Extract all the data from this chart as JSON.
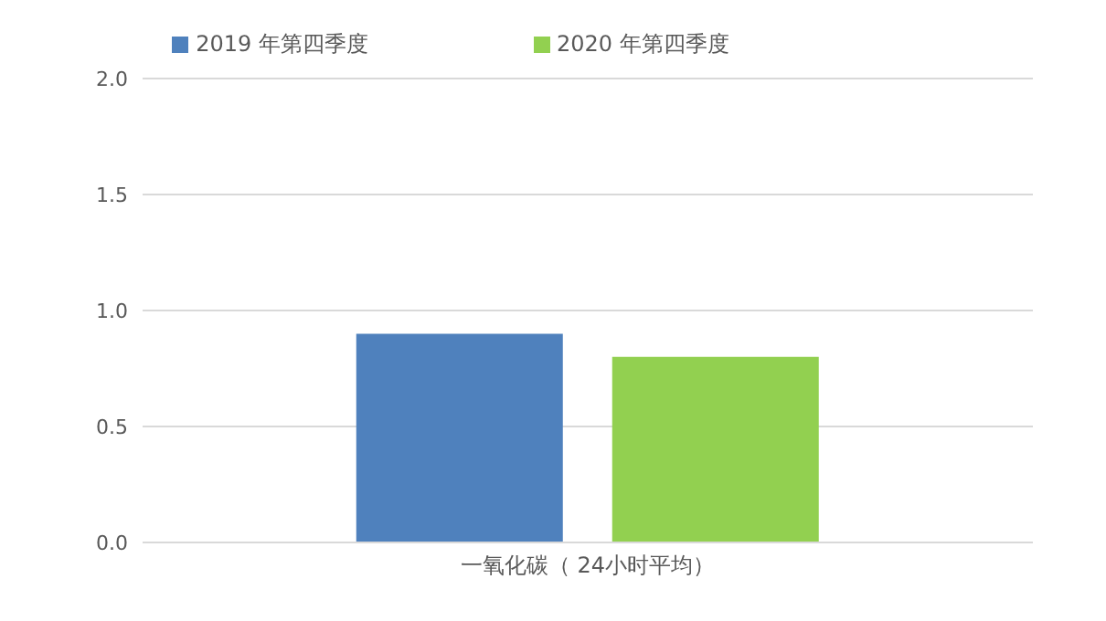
{
  "chart_data": {
    "type": "bar",
    "categories": [
      "一氧化碳（ 24小时平均）"
    ],
    "series": [
      {
        "name": "2019 年第四季度",
        "color": "#4f81bd",
        "values": [
          0.9
        ]
      },
      {
        "name": "2020 年第四季度",
        "color": "#92d050",
        "values": [
          0.8
        ]
      }
    ],
    "ylim": [
      0,
      2
    ],
    "yticks": [
      {
        "value": 0,
        "label": "0.0"
      },
      {
        "value": 0.5,
        "label": "0.5"
      },
      {
        "value": 1,
        "label": "1.0"
      },
      {
        "value": 1.5,
        "label": "1.5"
      },
      {
        "value": 2,
        "label": "2.0"
      }
    ],
    "grid": "y",
    "legend": "top"
  }
}
